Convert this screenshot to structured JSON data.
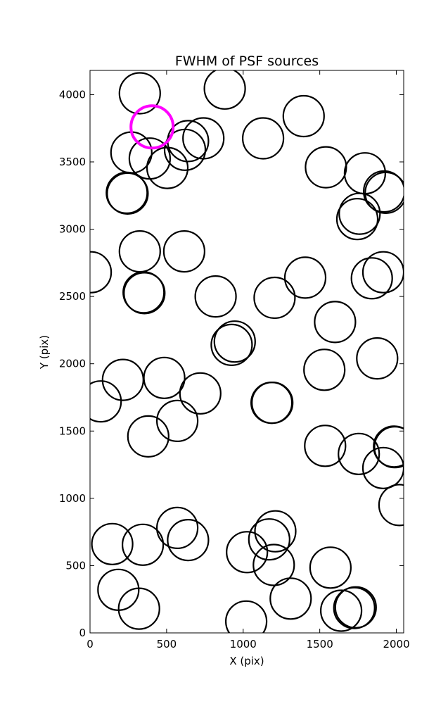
{
  "chart_data": {
    "type": "scatter",
    "title": "FWHM of PSF sources",
    "xlabel": "X (pix)",
    "ylabel": "Y (pix)",
    "xlim": [
      0,
      2048
    ],
    "ylim": [
      0,
      4180
    ],
    "xticks": [
      0,
      500,
      1000,
      1500,
      2000
    ],
    "yticks": [
      0,
      500,
      1000,
      1500,
      2000,
      2500,
      3000,
      3500,
      4000
    ],
    "grid": false,
    "legend": "none",
    "marker": "open-circle",
    "marker_color": "#000000",
    "highlight_color": "#ff00ff",
    "series": [
      {
        "points": [
          [
            325,
            4010
          ],
          [
            880,
            4045
          ],
          [
            1395,
            3840
          ],
          [
            640,
            3655
          ],
          [
            740,
            3675
          ],
          [
            1130,
            3675
          ],
          [
            270,
            3570
          ],
          [
            390,
            3525
          ],
          [
            505,
            3455
          ],
          [
            620,
            3590
          ],
          [
            1540,
            3460
          ],
          [
            1795,
            3415
          ],
          [
            1920,
            3280
          ],
          [
            1930,
            3270
          ],
          [
            240,
            3270
          ],
          [
            245,
            3265
          ],
          [
            1745,
            3075
          ],
          [
            1760,
            3115
          ],
          [
            325,
            2835
          ],
          [
            615,
            2835
          ],
          [
            5,
            2680
          ],
          [
            1405,
            2640
          ],
          [
            1840,
            2635
          ],
          [
            1915,
            2680
          ],
          [
            350,
            2530
          ],
          [
            355,
            2525
          ],
          [
            820,
            2500
          ],
          [
            1205,
            2490
          ],
          [
            1600,
            2310
          ],
          [
            925,
            2140
          ],
          [
            945,
            2165
          ],
          [
            1530,
            1955
          ],
          [
            1875,
            2040
          ],
          [
            215,
            1880
          ],
          [
            485,
            1895
          ],
          [
            720,
            1780
          ],
          [
            70,
            1720
          ],
          [
            1185,
            1710
          ],
          [
            1190,
            1710
          ],
          [
            570,
            1575
          ],
          [
            380,
            1460
          ],
          [
            1535,
            1390
          ],
          [
            1755,
            1330
          ],
          [
            1915,
            1225
          ],
          [
            1985,
            1385
          ],
          [
            1990,
            1380
          ],
          [
            2020,
            950
          ],
          [
            570,
            780
          ],
          [
            640,
            690
          ],
          [
            1210,
            755
          ],
          [
            1170,
            695
          ],
          [
            145,
            660
          ],
          [
            345,
            655
          ],
          [
            1025,
            600
          ],
          [
            1200,
            505
          ],
          [
            1570,
            485
          ],
          [
            185,
            320
          ],
          [
            320,
            180
          ],
          [
            1310,
            255
          ],
          [
            1020,
            85
          ],
          [
            1640,
            165
          ],
          [
            1725,
            185
          ],
          [
            1735,
            190
          ]
        ]
      },
      {
        "points": [
          [
            405,
            3760
          ]
        ]
      }
    ]
  }
}
